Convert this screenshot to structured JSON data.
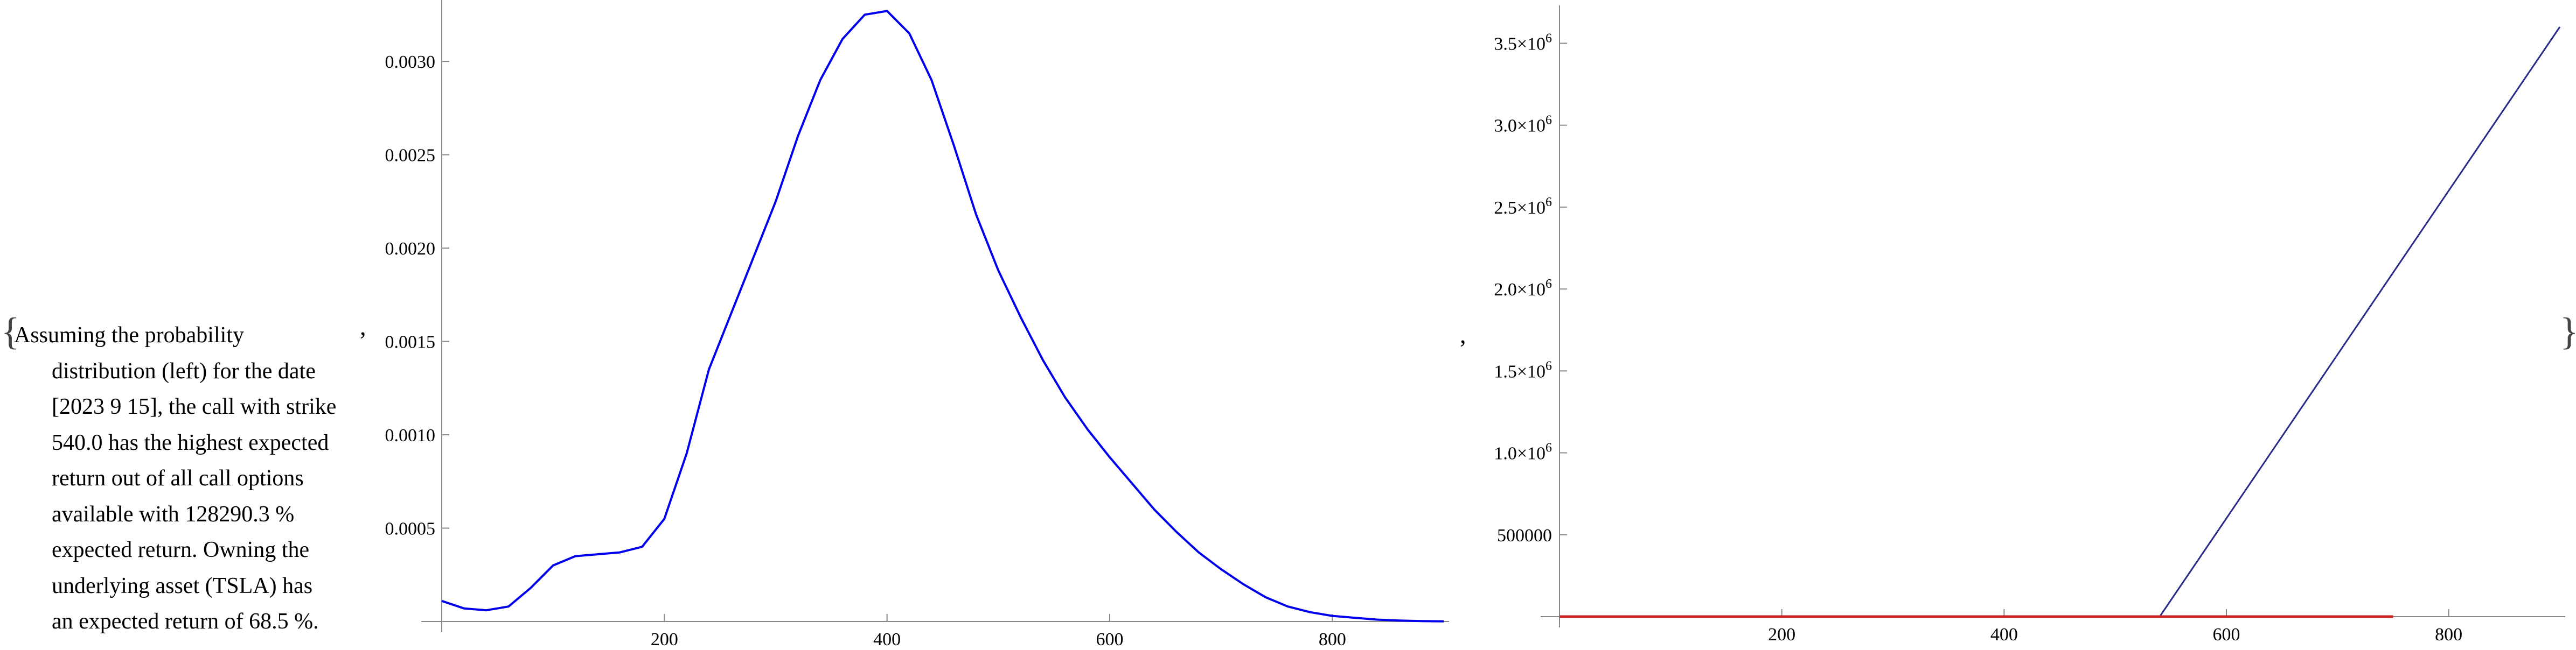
{
  "caption": {
    "lines": [
      "Assuming the probability",
      "distribution (left) for the date",
      "[2023 9 15], the call with strike",
      "540.0 has the highest expected",
      "return out of all call options",
      "available with 128290.3 %",
      "expected return. Owning the",
      "underlying asset (TSLA) has",
      "an expected return of 68.5 %."
    ]
  },
  "punctuation": {
    "brace_open": "{",
    "brace_close": "}",
    "comma": ","
  },
  "chart_data": [
    {
      "type": "line",
      "xlim": [
        0,
        900
      ],
      "ylim": [
        0,
        0.0033
      ],
      "x_ticks": [
        "200",
        "400",
        "600",
        "800"
      ],
      "y_ticks": [
        "0.0005",
        "0.0010",
        "0.0015",
        "0.0020",
        "0.0025",
        "0.0030"
      ],
      "grid": false,
      "legend": "none",
      "colors": {
        "curve": "#0000ee",
        "axis": "#888888"
      },
      "series": [
        {
          "x": [
            0,
            20,
            40,
            60,
            80,
            100,
            120,
            140,
            160,
            180,
            200,
            220,
            240,
            260,
            280,
            300,
            320,
            340,
            360,
            380,
            400,
            420,
            440,
            460,
            480,
            500,
            520,
            540,
            560,
            580,
            600,
            620,
            640,
            660,
            680,
            700,
            720,
            740,
            760,
            780,
            800,
            820,
            840,
            860,
            880,
            900
          ],
          "y": [
            0.00011,
            7e-05,
            6e-05,
            8e-05,
            0.00018,
            0.0003,
            0.00035,
            0.00036,
            0.00037,
            0.0004,
            0.00055,
            0.0009,
            0.00135,
            0.00165,
            0.00195,
            0.00225,
            0.0026,
            0.0029,
            0.00312,
            0.00325,
            0.00327,
            0.00315,
            0.0029,
            0.00255,
            0.00218,
            0.00188,
            0.00163,
            0.0014,
            0.0012,
            0.00103,
            0.00088,
            0.00074,
            0.0006,
            0.00048,
            0.00037,
            0.00028,
            0.0002,
            0.00013,
            8e-05,
            5e-05,
            3e-05,
            2e-05,
            1e-05,
            5e-06,
            2e-06,
            1e-06
          ]
        }
      ]
    },
    {
      "type": "line",
      "xlim": [
        0,
        900
      ],
      "ylim": [
        0,
        3600000
      ],
      "x_ticks": [
        "200",
        "400",
        "600",
        "800"
      ],
      "y_ticks": [
        {
          "mant": "500000",
          "exp": ""
        },
        {
          "mant": "1.0×10",
          "exp": "6"
        },
        {
          "mant": "1.5×10",
          "exp": "6"
        },
        {
          "mant": "2.0×10",
          "exp": "6"
        },
        {
          "mant": "2.5×10",
          "exp": "6"
        },
        {
          "mant": "3.0×10",
          "exp": "6"
        },
        {
          "mant": "3.5×10",
          "exp": "6"
        }
      ],
      "grid": false,
      "legend": "none",
      "colors": {
        "payoff": "#2a2a8a",
        "expected": "#cc2222",
        "axis": "#888888"
      },
      "series": [
        {
          "x": [
            0,
            540,
            900
          ],
          "y": [
            0,
            0,
            3600000
          ]
        },
        {
          "x": [
            0,
            750
          ],
          "y": [
            0,
            0
          ]
        }
      ]
    }
  ]
}
